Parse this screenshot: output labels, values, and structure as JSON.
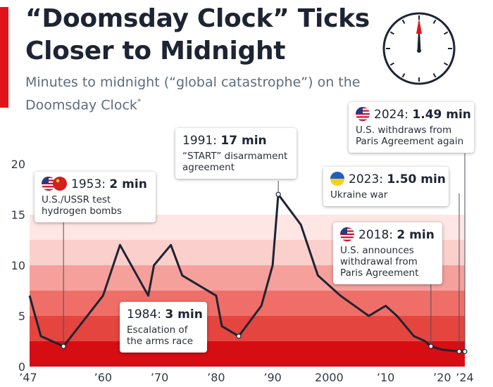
{
  "header": {
    "title": "“Doomsday Clock” Ticks Closer to Midnight",
    "subtitle": "Minutes to midnight (“global catastrophe”) on the Doomsday Clock",
    "footnote_mark": "*"
  },
  "colors": {
    "accent": "#e0131a",
    "line": "#1d2433",
    "title": "#1d2433",
    "subtitle": "#5c6c7c",
    "bands": [
      "#d70d14",
      "#e5453f",
      "#ef6f68",
      "#f6a09b",
      "#fbcfcb",
      "#fde6e4"
    ]
  },
  "clock_icon": {
    "name": "clock-icon",
    "hand_color": "#e0131a"
  },
  "callouts": [
    {
      "id": "1953",
      "year": "1953",
      "value": "2 min",
      "desc": [
        "U.S./USSR test",
        "hydrogen bombs"
      ],
      "flags": [
        "us-flag-icon",
        "ussr-flag-icon"
      ]
    },
    {
      "id": "1991",
      "year": "1991",
      "value": "17 min",
      "desc": [
        "“START” disarmament",
        "agreement"
      ],
      "flags": []
    },
    {
      "id": "1984",
      "year": "1984",
      "value": "3 min",
      "desc": [
        "Escalation of",
        "the arms race"
      ],
      "flags": []
    },
    {
      "id": "2024",
      "year": "2024",
      "value": "1.49 min",
      "desc": [
        "U.S. withdraws from",
        "Paris Agreement again"
      ],
      "flags": [
        "us-flag-icon"
      ]
    },
    {
      "id": "2023",
      "year": "2023",
      "value": "1.50 min",
      "desc": [
        "Ukraine war"
      ],
      "flags": [
        "ukraine-flag-icon"
      ]
    },
    {
      "id": "2018",
      "year": "2018",
      "value": "2 min",
      "desc": [
        "U.S. announces",
        "withdrawal from",
        "Paris Agreement"
      ],
      "flags": [
        "us-flag-icon"
      ]
    }
  ],
  "chart_data": {
    "type": "line",
    "title": "“Doomsday Clock” Ticks Closer to Midnight",
    "subtitle": "Minutes to midnight (“global catastrophe”) on the Doomsday Clock",
    "xlabel": "",
    "ylabel": "",
    "xlim": [
      1947,
      2024
    ],
    "ylim": [
      0,
      20
    ],
    "y_ticks": [
      0,
      5,
      10,
      15,
      20
    ],
    "x_ticks": [
      {
        "value": 1947,
        "label": "’47"
      },
      {
        "value": 1960,
        "label": "’60"
      },
      {
        "value": 1970,
        "label": "’70"
      },
      {
        "value": 1980,
        "label": "’80"
      },
      {
        "value": 1990,
        "label": "’90"
      },
      {
        "value": 2000,
        "label": "2000"
      },
      {
        "value": 2010,
        "label": "’10"
      },
      {
        "value": 2020,
        "label": "’20"
      },
      {
        "value": 2024,
        "label": "’24"
      }
    ],
    "grid": false,
    "background_bands": [
      0,
      2.5,
      5,
      7.5,
      10,
      12.5,
      15
    ],
    "series": [
      {
        "x": [
          1947,
          1949,
          1953,
          1960,
          1963,
          1968,
          1969,
          1972,
          1974,
          1980,
          1981,
          1984,
          1988,
          1990,
          1991,
          1995,
          1998,
          2002,
          2007,
          2010,
          2012,
          2015,
          2017,
          2018,
          2020,
          2023,
          2024
        ],
        "y": [
          7,
          3,
          2,
          7,
          12,
          7,
          10,
          12,
          9,
          7,
          4,
          3,
          6,
          10,
          17,
          14,
          9,
          7,
          5,
          6,
          5,
          3,
          2.5,
          2,
          1.67,
          1.5,
          1.49
        ]
      }
    ],
    "highlighted_points": [
      1953,
      1984,
      1991,
      2018,
      2023,
      2024
    ]
  }
}
